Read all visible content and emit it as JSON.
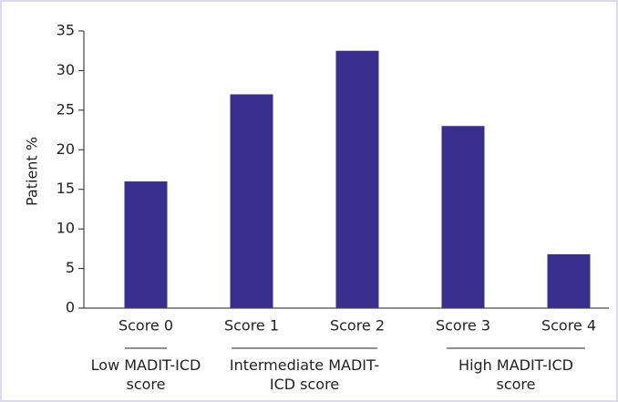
{
  "chart_data": {
    "type": "bar",
    "y_label": "Patient %",
    "categories": [
      "Score 0",
      "Score 1",
      "Score 2",
      "Score 3",
      "Score 4"
    ],
    "values": [
      16,
      27,
      32.5,
      23,
      6.8
    ],
    "color": "#3a2f8d",
    "ylim": [
      0,
      35
    ],
    "yticks": [
      0,
      5,
      10,
      15,
      20,
      25,
      30,
      35
    ],
    "groups": [
      "Low MADIT-ICD score",
      "Intermediate MADIT-ICD score",
      "High MADIT-ICD score"
    ]
  }
}
